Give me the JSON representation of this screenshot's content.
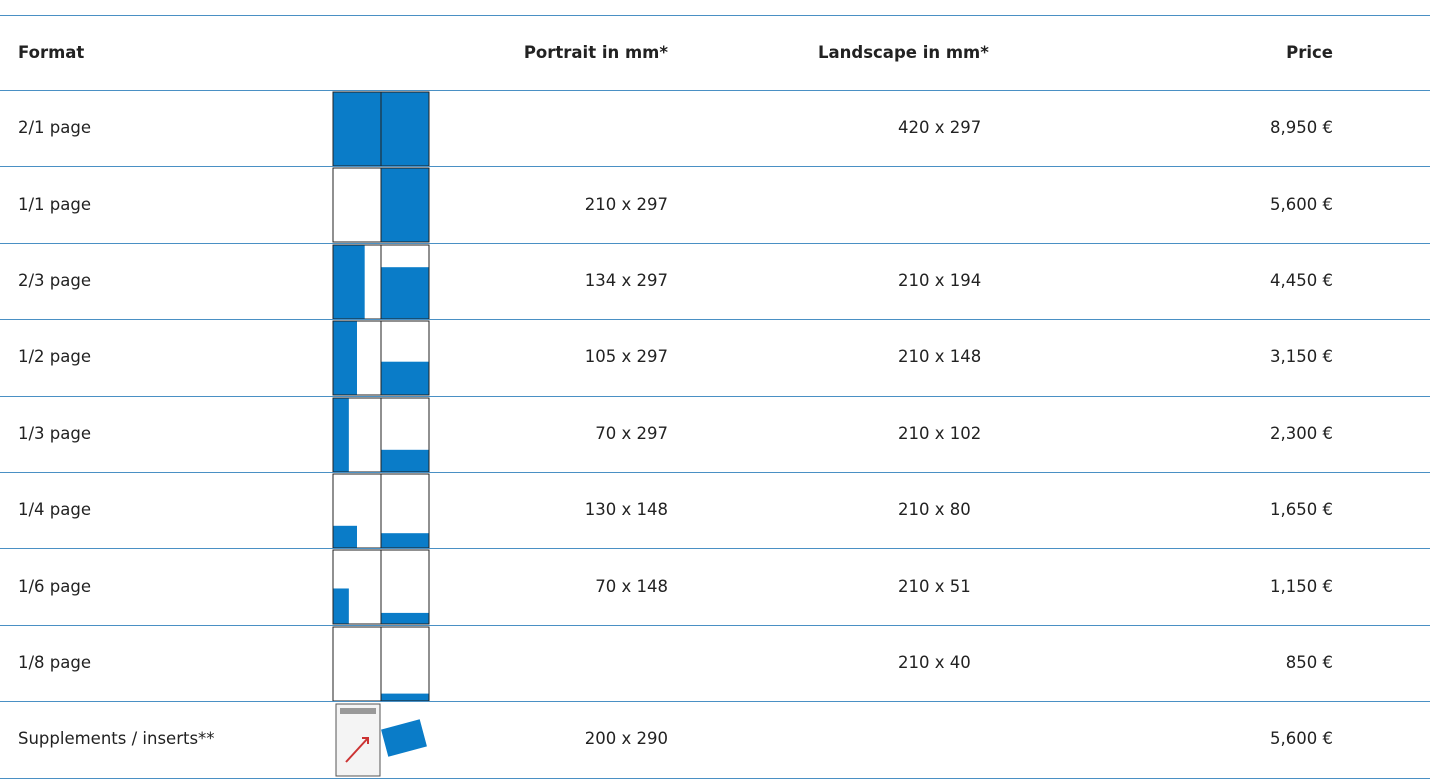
{
  "table": {
    "header": [
      "Format",
      "Portrait in mm*",
      "Landscape in mm*",
      "Price"
    ],
    "rows": [
      {
        "format": "2/1 page",
        "landscape": "420 x 297",
        "price": "8,950 €"
      },
      {
        "format": "1/1 page",
        "portrait": "210 x 297",
        "price": "5,600 €"
      },
      {
        "format": "2/3 page",
        "portrait": "134 x 297",
        "landscape": "210 x 194",
        "price": "4,450 €"
      },
      {
        "format": "1/2 page",
        "portrait": "105 x 297",
        "landscape": "210 x 148",
        "price": "3,150 €"
      },
      {
        "format": "1/3 page",
        "portrait": "70 x 297",
        "landscape": "210 x 102",
        "price": "2,300 €"
      },
      {
        "format": "1/4 page",
        "portrait": "130 x 148",
        "landscape": "210 x 80",
        "price": "1,650 €"
      },
      {
        "format": "1/6 page",
        "portrait": "70 x 148",
        "landscape": "210 x 51",
        "price": "1,150 €"
      },
      {
        "format": "1/8 page",
        "landscape": "210 x 40",
        "price": "850 €"
      },
      {
        "format": "Supplements / inserts**",
        "portrait": "200 x 290",
        "price": "5,600 €"
      }
    ]
  }
}
